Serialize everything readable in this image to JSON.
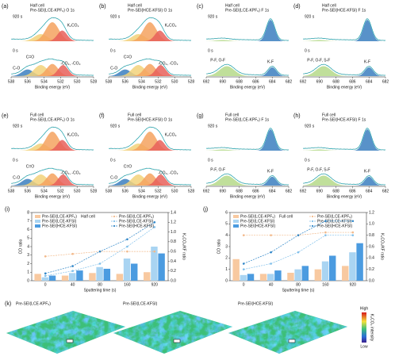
{
  "panels": [
    {
      "label": "(a)",
      "cell": "Half cell",
      "title": "Pre-SEI(LCE-KPF₆) O 1s",
      "time_top": "920 s",
      "time_bottom": "0 s",
      "peaks": [
        "K₂CO₃",
        "C=O",
        "C-O",
        "-CO₃, -CO₃"
      ],
      "xticks": [
        "538",
        "536",
        "534",
        "532",
        "530",
        "528"
      ],
      "xlabel": "Binding energy (eV)"
    },
    {
      "label": "(b)",
      "cell": "Half cell",
      "title": "Pre-SEI(HCE-KFSI) O 1s",
      "time_top": "920 s",
      "time_bottom": "0 s",
      "peaks": [
        "K₂CO₃",
        "C=O",
        "C-O",
        "-CO₃, -CO₃"
      ],
      "xticks": [
        "538",
        "536",
        "534",
        "532",
        "530",
        "528"
      ],
      "xlabel": "Binding energy (eV)"
    },
    {
      "label": "(c)",
      "cell": "Half cell",
      "title": "Pre-SEI(LCE-KPF₆) F 1s",
      "time_top": "920 s",
      "time_bottom": "0 s",
      "peaks": [
        "P-F, O-F",
        "K-F"
      ],
      "xticks": [
        "692",
        "690",
        "688",
        "686",
        "684",
        "682"
      ],
      "xlabel": "Binding energy (eV)"
    },
    {
      "label": "(d)",
      "cell": "Half cell",
      "title": "Pre-SEI(HCE-KFSI) F 1s",
      "time_top": "920 s",
      "time_bottom": "0 s",
      "peaks": [
        "P-F, O-F, S-F",
        "K-F"
      ],
      "xticks": [
        "692",
        "690",
        "688",
        "686",
        "684",
        "682"
      ],
      "xlabel": "Binding energy (eV)"
    },
    {
      "label": "(e)",
      "cell": "Full cell",
      "title": "Pre-SEI(LCE-KPF₆) O 1s",
      "time_top": "920 s",
      "time_bottom": "0 s",
      "peaks": [
        "K₂CO₃",
        "C=O",
        "C-O",
        "-CO₃, -CO₃"
      ],
      "xticks": [
        "538",
        "536",
        "534",
        "532",
        "530",
        "528"
      ],
      "xlabel": "Binding energy (eV)"
    },
    {
      "label": "(f)",
      "cell": "Full cell",
      "title": "Pre-SEI(HCE-KFSI) O 1s",
      "time_top": "920 s",
      "time_bottom": "0 s",
      "peaks": [
        "K₂CO₃",
        "C=O",
        "C-O",
        "-CO₃, -CO₃"
      ],
      "xticks": [
        "538",
        "536",
        "534",
        "532",
        "530",
        "528"
      ],
      "xlabel": "Binding energy (eV)"
    },
    {
      "label": "(g)",
      "cell": "Full cell",
      "title": "Pre-SEI(LCE-KPF₆) F 1s",
      "time_top": "920 s",
      "time_bottom": "0 s",
      "peaks": [
        "P-F, O-F",
        "K-F"
      ],
      "xticks": [
        "692",
        "690",
        "688",
        "686",
        "684",
        "682"
      ],
      "xlabel": "Binding energy (eV)"
    },
    {
      "label": "(h)",
      "cell": "Full cell",
      "title": "Pre-SEI(HCE-KFSI) F 1s",
      "time_top": "920 s",
      "time_bottom": "0 s",
      "peaks": [
        "P-F, O-F, S-F",
        "K-F"
      ],
      "xticks": [
        "692",
        "690",
        "688",
        "686",
        "684",
        "682"
      ],
      "xlabel": "Binding energy (eV)"
    }
  ],
  "chart_data": [
    {
      "type": "bar",
      "label": "(i)",
      "annotation": "Half cell",
      "categories": [
        "0",
        "40",
        "80",
        "160",
        "920"
      ],
      "xlabel": "Sputtering time (s)",
      "ylabel": "CO ratio",
      "y2label": "K₂CO₃/KF ratio",
      "ylim": [
        0,
        8
      ],
      "yticks": [
        0,
        1,
        2,
        3,
        4,
        5,
        6,
        7,
        8
      ],
      "y2lim": [
        0,
        1.4
      ],
      "y2ticks": [
        {
          "value": 0,
          "label": "0.0"
        },
        0.2,
        0.4,
        0.6,
        0.8,
        {
          "value": 1,
          "label": "1.0"
        },
        1.2,
        1.4
      ],
      "series": [
        {
          "name": "Pre-SEI(LCE-KPF₆)",
          "color": "#f8c9a0",
          "values": [
            0.8,
            0.6,
            0.9,
            0.8,
            1.0
          ]
        },
        {
          "name": "Pre-SEI(LCE-KFSI)",
          "color": "#a9d4f2",
          "values": [
            0.4,
            0.9,
            1.6,
            2.6,
            4.0
          ]
        },
        {
          "name": "Pre-SEI(HCE-KFSI)",
          "color": "#4b9be0",
          "values": [
            0.6,
            1.2,
            1.4,
            2.0,
            3.2
          ]
        },
        {
          "name": "Pre-SEI(LCE-KPF₆)",
          "color": "#f2b98a",
          "axis": "y2",
          "values": [
            0.5,
            0.55,
            0.6,
            0.6,
            0.6
          ]
        },
        {
          "name": "Pre-SEI(LCE-KFSI)",
          "color": "#7fbfea",
          "axis": "y2",
          "values": [
            0.1,
            0.2,
            0.35,
            0.7,
            1.1
          ]
        },
        {
          "name": "Pre-SEI(HCE-KFSI)",
          "color": "#2f86c8",
          "axis": "y2",
          "values": [
            0.15,
            0.3,
            0.6,
            0.85,
            1.2
          ]
        }
      ]
    },
    {
      "type": "bar",
      "label": "(j)",
      "annotation": "Full cell",
      "categories": [
        "0",
        "40",
        "80",
        "160",
        "920"
      ],
      "xlabel": "Sputtering time (s)",
      "ylabel": "CO ratio",
      "y2label": "K₂CO₃/KF ratio",
      "ylim": [
        0,
        6
      ],
      "yticks": [
        0,
        1,
        2,
        3,
        4,
        5,
        6
      ],
      "y2lim": [
        0,
        1.2
      ],
      "y2ticks": [
        {
          "value": 0,
          "label": "0.0"
        },
        0.2,
        0.4,
        0.6,
        0.8,
        {
          "value": 1,
          "label": "1.0"
        },
        1.2
      ],
      "series": [
        {
          "name": "Pre-SEI(LCE-KPF₆)",
          "color": "#f8c9a0",
          "values": [
            1.9,
            0.6,
            0.7,
            1.0,
            1.3
          ]
        },
        {
          "name": "Pre-SEI(LCE-KFSI)",
          "color": "#a9d4f2",
          "values": [
            0.5,
            0.6,
            1.0,
            1.7,
            2.5
          ]
        },
        {
          "name": "Pre-SEI(HCE-KFSI)",
          "color": "#4b9be0",
          "values": [
            0.6,
            0.9,
            1.3,
            2.2,
            3.3
          ]
        },
        {
          "name": "Pre-SEI(LCE-KPF₆)",
          "color": "#f2b98a",
          "axis": "y2",
          "values": [
            0.8,
            0.8,
            0.8,
            0.85,
            0.85
          ]
        },
        {
          "name": "Pre-SEI(LCE-KFSI)",
          "color": "#7fbfea",
          "axis": "y2",
          "values": [
            0.2,
            0.3,
            0.5,
            0.8,
            0.8
          ]
        },
        {
          "name": "Pre-SEI(HCE-KFSI)",
          "color": "#2f86c8",
          "axis": "y2",
          "values": [
            0.3,
            0.5,
            0.8,
            1.05,
            1.05
          ]
        }
      ]
    }
  ],
  "maps": {
    "label": "(k)",
    "titles": [
      "Pre-SEI(LCE-KPF₆)",
      "Pre-SEI(LCE-KFSI)",
      "Pre-SEI(HCE-KFSI)"
    ],
    "high": "High",
    "low": "Low",
    "scale_label": "K₂CO₃ intensity"
  }
}
